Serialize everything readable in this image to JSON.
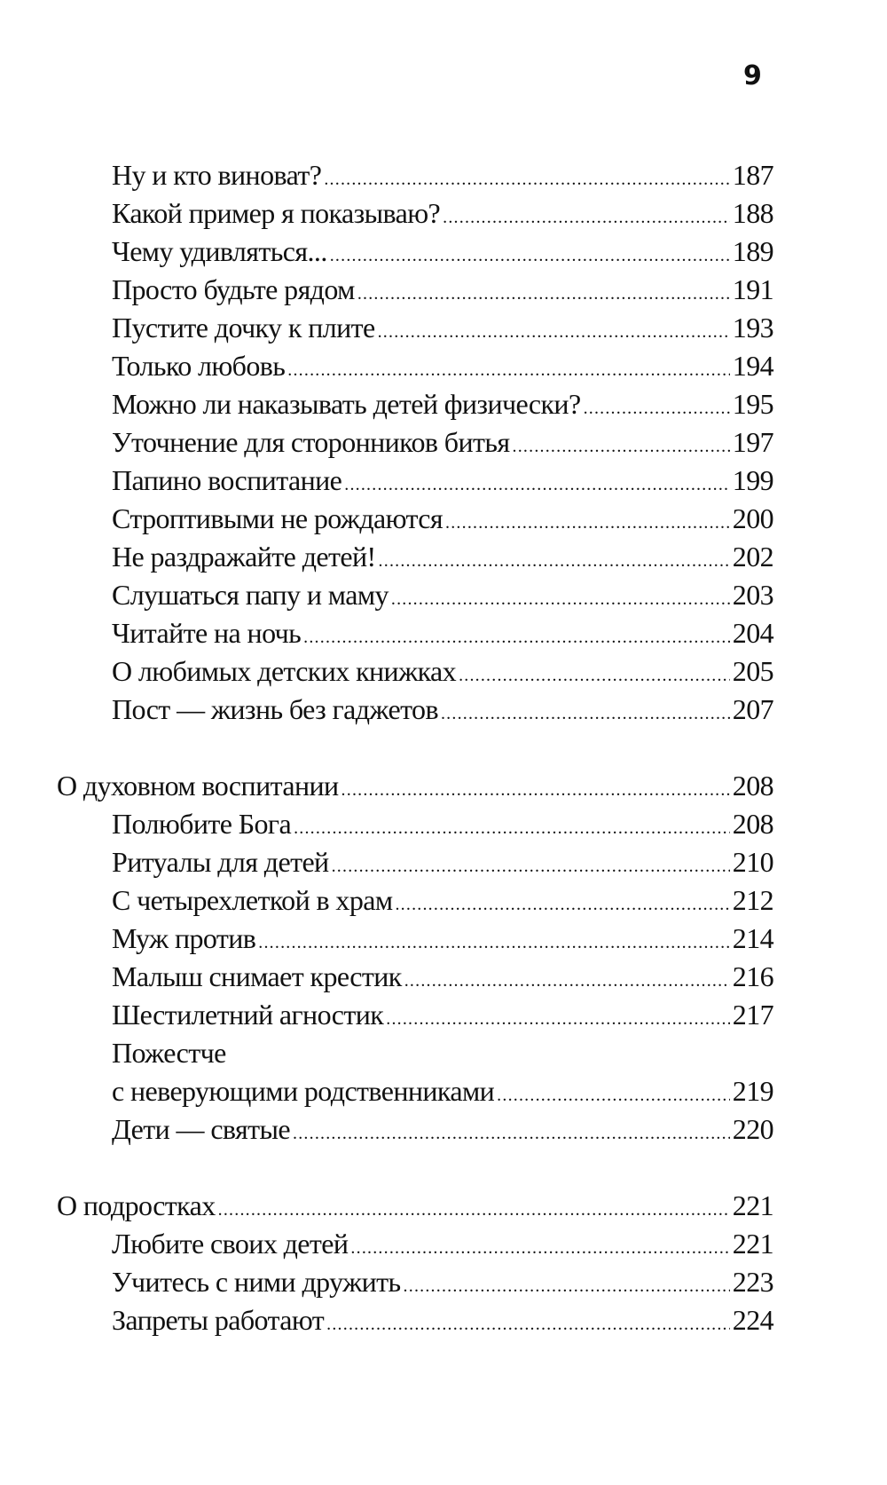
{
  "page_number": "9",
  "toc": [
    {
      "level": "sub",
      "title": "Ну и кто виноват?",
      "page": "187"
    },
    {
      "level": "sub",
      "title": "Какой пример я показываю?",
      "page": "188"
    },
    {
      "level": "sub",
      "title": "Чему удивляться...",
      "page": "189"
    },
    {
      "level": "sub",
      "title": "Просто будьте рядом",
      "page": "191"
    },
    {
      "level": "sub",
      "title": "Пустите дочку к плите",
      "page": "193"
    },
    {
      "level": "sub",
      "title": "Только любовь",
      "page": "194"
    },
    {
      "level": "sub",
      "title": "Можно ли наказывать детей физически?",
      "page": "195"
    },
    {
      "level": "sub",
      "title": "Уточнение для сторонников битья",
      "page": "197"
    },
    {
      "level": "sub",
      "title": "Папино воспитание",
      "page": "199"
    },
    {
      "level": "sub",
      "title": "Строптивыми не рождаются",
      "page": "200"
    },
    {
      "level": "sub",
      "title": "Не раздражайте детей!",
      "page": "202"
    },
    {
      "level": "sub",
      "title": "Слушаться папу и маму",
      "page": "203"
    },
    {
      "level": "sub",
      "title": "Читайте на ночь",
      "page": "204"
    },
    {
      "level": "sub",
      "title": "О любимых детских книжках",
      "page": "205"
    },
    {
      "level": "sub",
      "title": "Пост — жизнь без гаджетов",
      "page": "207"
    },
    {
      "level": "blank"
    },
    {
      "level": "section",
      "title": "О духовном воспитании",
      "page": "208"
    },
    {
      "level": "sub",
      "title": "Полюбите Бога",
      "page": "208"
    },
    {
      "level": "sub",
      "title": "Ритуалы для детей",
      "page": "210"
    },
    {
      "level": "sub",
      "title": "С четырехлеткой в храм",
      "page": "212"
    },
    {
      "level": "sub",
      "title": "Муж против",
      "page": "214"
    },
    {
      "level": "sub",
      "title": "Малыш снимает крестик",
      "page": "216"
    },
    {
      "level": "sub",
      "title": "Шестилетний агностик",
      "page": "217"
    },
    {
      "level": "sub",
      "title": "Пожестче"
    },
    {
      "level": "sub",
      "title": "с неверующими родственниками",
      "page": "219"
    },
    {
      "level": "sub",
      "title": "Дети — святые",
      "page": "220"
    },
    {
      "level": "blank"
    },
    {
      "level": "section",
      "title": "О подростках",
      "page": "221"
    },
    {
      "level": "sub",
      "title": "Любите своих детей",
      "page": "221"
    },
    {
      "level": "sub",
      "title": "Учитесь с ними дружить",
      "page": "223"
    },
    {
      "level": "sub",
      "title": "Запреты работают",
      "page": "224"
    }
  ]
}
